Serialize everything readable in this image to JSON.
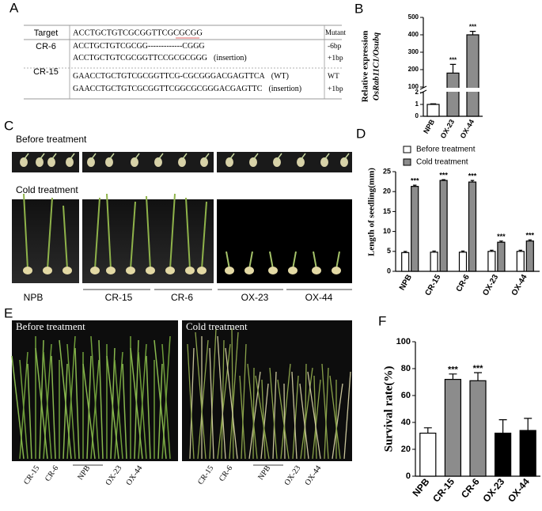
{
  "panel_labels": [
    "A",
    "B",
    "C",
    "D",
    "E",
    "F"
  ],
  "table": {
    "header": [
      "Target",
      "ACCTGCTGTCGCGGTTCGCGCGG",
      "Mutant"
    ],
    "groups": [
      {
        "name": "CR-6",
        "rows": [
          {
            "sequence": "ACCTGCTGTCGCGG-------------CGGG",
            "mutation": "-6bp"
          },
          {
            "sequence": "ACCTGCTGTCGCGGTTCCGCGCGGG",
            "note": "(insertion)",
            "mutation": "+1bp"
          }
        ]
      },
      {
        "name": "CR-15",
        "rows": [
          {
            "sequence": "GAACCTGCTGTCGCGGTTCG-CGCGGGACGAGTTCA",
            "note": "(WT)",
            "mutation": "WT"
          },
          {
            "sequence": "GAACCTGCTGTCGCGGTTCGGCGCGGGACGAGTTC",
            "note": "(insertion)",
            "mutation": "+1bp"
          }
        ]
      }
    ]
  },
  "panel_c": {
    "before_title": "Before treatment",
    "cold_title": "Cold  treatment",
    "labels": [
      "NPB",
      "CR-15",
      "CR-6",
      "OX-23",
      "OX-44"
    ]
  },
  "panel_e": {
    "before_title": "Before treatment",
    "cold_title": "Cold treatment",
    "labels": [
      "CR-15",
      "CR-6",
      "NPB",
      "OX-23",
      "OX-44"
    ]
  },
  "chart_data": [
    {
      "type": "bar",
      "ylabel": [
        "Relative expression",
        "OsRab11C1/Osubq"
      ],
      "categories": [
        "NPB",
        "OX-23",
        "OX-44"
      ],
      "values": [
        1,
        180,
        400
      ],
      "errors": [
        0.05,
        50,
        20
      ],
      "colors": [
        "#ffffff",
        "#8c8c8c",
        "#8c8c8c"
      ],
      "significance": [
        null,
        "***",
        "***"
      ],
      "ylim": [
        0,
        500
      ],
      "axis_break": [
        2,
        100
      ],
      "yticks": [
        0,
        1,
        2,
        100,
        200,
        300,
        400,
        500
      ]
    },
    {
      "type": "bar",
      "ylabel": "Length of seedling(mm)",
      "categories": [
        "NPB",
        "CR-15",
        "CR-6",
        "OX-23",
        "OX-44"
      ],
      "series": [
        {
          "name": "Before treatment",
          "color": "#ffffff",
          "values": [
            4.7,
            4.8,
            4.8,
            5.0,
            5.0
          ],
          "errors": [
            0.3,
            0.3,
            0.3,
            0.3,
            0.3
          ]
        },
        {
          "name": "Cold treatment",
          "color": "#8c8c8c",
          "values": [
            21.3,
            22.8,
            22.4,
            7.3,
            7.6
          ],
          "errors": [
            0.3,
            0.2,
            0.4,
            0.3,
            0.3
          ],
          "significance": [
            "***",
            "***",
            "***",
            "***",
            "***"
          ]
        }
      ],
      "ylim": [
        0,
        25
      ],
      "yticks": [
        0,
        5,
        10,
        15,
        20,
        25
      ]
    },
    {
      "type": "bar",
      "ylabel": "Survival rate(%)",
      "categories": [
        "NPB",
        "CR-15",
        "CR-6",
        "OX-23",
        "OX-44"
      ],
      "values": [
        32,
        72,
        71,
        32,
        34
      ],
      "errors": [
        4,
        4,
        6,
        10,
        9
      ],
      "colors": [
        "#ffffff",
        "#8c8c8c",
        "#8c8c8c",
        "#000000",
        "#000000"
      ],
      "significance": [
        null,
        "***",
        "***",
        null,
        null
      ],
      "ylim": [
        0,
        100
      ],
      "yticks": [
        0,
        20,
        40,
        60,
        80,
        100
      ]
    }
  ]
}
